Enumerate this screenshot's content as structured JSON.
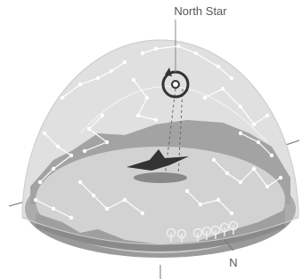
{
  "labels": {
    "north_star": "North Star",
    "north": "N"
  }
}
